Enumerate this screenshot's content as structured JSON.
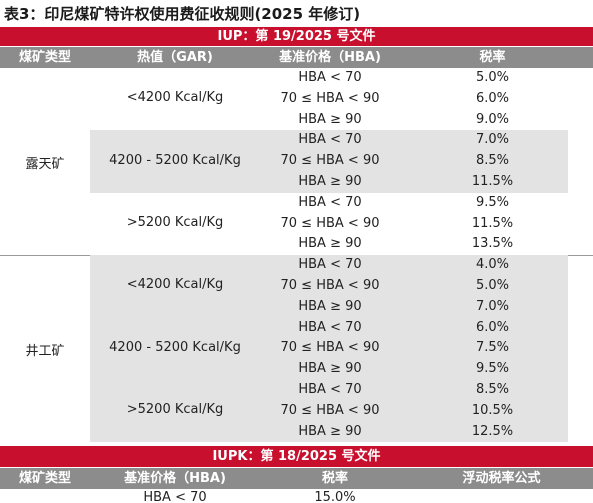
{
  "title": "表3：印尼煤矿特许权使用费征收规则(2025 年修订)",
  "iup_band": "IUP：第 19/2025 号文件",
  "iup_headers": [
    "煤矿类型",
    "热值（GAR)",
    "基准价格（HBA)",
    "税率"
  ],
  "groups": [
    {
      "type": "露天矿",
      "bands": [
        {
          "cv": "<4200 Kcal/Kg",
          "rows": [
            [
              "HBA < 70",
              "5.0%"
            ],
            [
              "70 ≤ HBA < 90",
              "6.0%"
            ],
            [
              "HBA ≥ 90",
              "9.0%"
            ]
          ]
        },
        {
          "cv": "4200 - 5200 Kcal/Kg",
          "rows": [
            [
              "HBA < 70",
              "7.0%"
            ],
            [
              "70 ≤ HBA < 90",
              "8.5%"
            ],
            [
              "HBA ≥ 90",
              "11.5%"
            ]
          ]
        },
        {
          "cv": ">5200 Kcal/Kg",
          "rows": [
            [
              "HBA < 70",
              "9.5%"
            ],
            [
              "70 ≤ HBA < 90",
              "11.5%"
            ],
            [
              "HBA ≥ 90",
              "13.5%"
            ]
          ]
        }
      ]
    },
    {
      "type": "井工矿",
      "bands": [
        {
          "cv": "<4200 Kcal/Kg",
          "rows": [
            [
              "HBA < 70",
              "4.0%"
            ],
            [
              "70 ≤ HBA < 90",
              "5.0%"
            ],
            [
              "HBA ≥ 90",
              "7.0%"
            ]
          ]
        },
        {
          "cv": "4200 - 5200 Kcal/Kg",
          "rows": [
            [
              "HBA < 70",
              "6.0%"
            ],
            [
              "70 ≤ HBA < 90",
              "7.5%"
            ],
            [
              "HBA ≥ 90",
              "9.5%"
            ]
          ]
        },
        {
          "cv": ">5200 Kcal/Kg",
          "rows": [
            [
              "HBA < 70",
              "8.5%"
            ],
            [
              "70 ≤ HBA < 90",
              "10.5%"
            ],
            [
              "HBA ≥ 90",
              "12.5%"
            ]
          ]
        }
      ]
    }
  ],
  "iupk_band": "IUPK：第 18/2025 号文件",
  "iupk_headers": [
    "煤矿类型",
    "基准价格（HBA)",
    "税率",
    "浮动税率公式"
  ],
  "iupk_first_row": {
    "hba": "HBA < 70",
    "rate": "15.0%"
  },
  "colors": {
    "accent": "#c8102e",
    "header": "#8c8c8c",
    "shade": "#e3e3e3"
  }
}
